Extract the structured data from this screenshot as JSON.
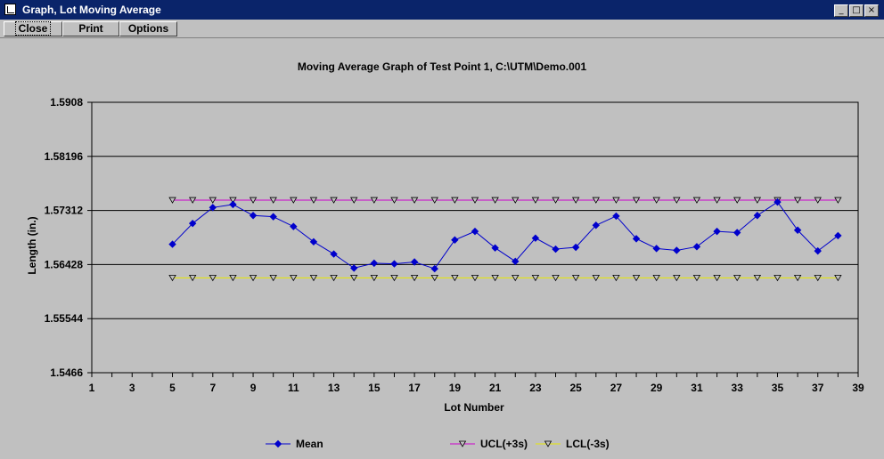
{
  "window": {
    "title": "Graph, Lot Moving Average",
    "minimize_glyph": "_",
    "maximize_glyph": "□",
    "close_glyph": "×",
    "app_icon": "graph-window-icon"
  },
  "menu": {
    "close_label": "Close",
    "print_label": "Print",
    "options_label": "Options"
  },
  "chart_data": {
    "type": "line",
    "title": "Moving Average Graph of Test Point 1, C:\\UTM\\Demo.001",
    "xlabel": "Lot Number",
    "ylabel": "Length (in.)",
    "xlim": [
      1,
      39
    ],
    "ylim": [
      1.5466,
      1.5908
    ],
    "x_ticks": [
      1,
      3,
      5,
      7,
      9,
      11,
      13,
      15,
      17,
      19,
      21,
      23,
      25,
      27,
      29,
      31,
      33,
      35,
      37,
      39
    ],
    "y_ticks": [
      "1.5466",
      "1.55544",
      "1.56428",
      "1.57312",
      "1.58196",
      "1.5908"
    ],
    "grid": "horizontal",
    "legend_position": "bottom",
    "x": [
      5,
      6,
      7,
      8,
      9,
      10,
      11,
      12,
      13,
      14,
      15,
      16,
      17,
      18,
      19,
      20,
      21,
      22,
      23,
      24,
      25,
      26,
      27,
      28,
      29,
      30,
      31,
      32,
      33,
      34,
      35,
      36,
      37,
      38
    ],
    "series": [
      {
        "name": "Mean",
        "color": "#0000cc",
        "marker": "diamond",
        "values": [
          1.5676,
          1.571,
          1.5736,
          1.5741,
          1.5723,
          1.5721,
          1.5705,
          1.568,
          1.566,
          1.5637,
          1.5645,
          1.5644,
          1.5647,
          1.5636,
          1.5683,
          1.5697,
          1.567,
          1.5648,
          1.5686,
          1.5668,
          1.5671,
          1.5707,
          1.5722,
          1.5685,
          1.5669,
          1.5666,
          1.5672,
          1.5697,
          1.5695,
          1.5723,
          1.5745,
          1.5699,
          1.5665,
          1.569
        ]
      },
      {
        "name": "UCL(+3s)",
        "color": "#cc00cc",
        "marker": "triangle-down",
        "values": [
          1.5748,
          1.5748,
          1.5748,
          1.5748,
          1.5748,
          1.5748,
          1.5748,
          1.5748,
          1.5748,
          1.5748,
          1.5748,
          1.5748,
          1.5748,
          1.5748,
          1.5748,
          1.5748,
          1.5748,
          1.5748,
          1.5748,
          1.5748,
          1.5748,
          1.5748,
          1.5748,
          1.5748,
          1.5748,
          1.5748,
          1.5748,
          1.5748,
          1.5748,
          1.5748,
          1.5748,
          1.5748,
          1.5748,
          1.5748
        ]
      },
      {
        "name": "LCL(-3s)",
        "color": "#e8e800",
        "marker": "triangle-down",
        "values": [
          1.5621,
          1.5621,
          1.5621,
          1.5621,
          1.5621,
          1.5621,
          1.5621,
          1.5621,
          1.5621,
          1.5621,
          1.5621,
          1.5621,
          1.5621,
          1.5621,
          1.5621,
          1.5621,
          1.5621,
          1.5621,
          1.5621,
          1.5621,
          1.5621,
          1.5621,
          1.5621,
          1.5621,
          1.5621,
          1.5621,
          1.5621,
          1.5621,
          1.5621,
          1.5621,
          1.5621,
          1.5621,
          1.5621,
          1.5621
        ]
      }
    ]
  }
}
